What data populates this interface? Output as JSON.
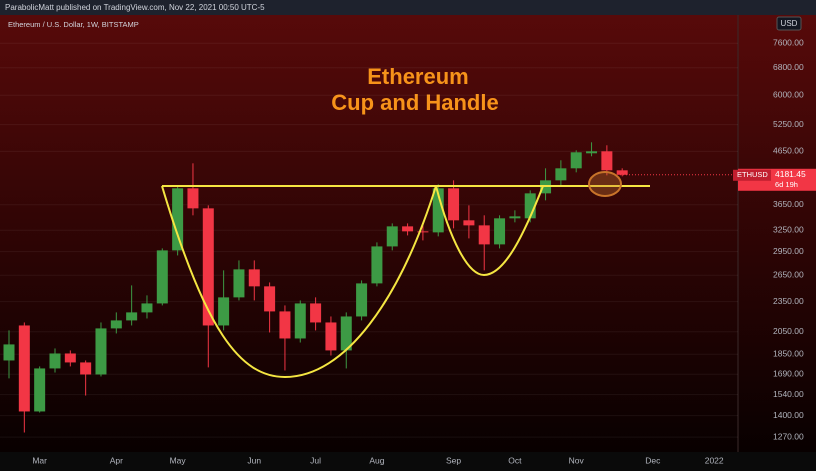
{
  "header": {
    "publisher": "ParabolicMatt published on TradingView.com, Nov 22, 2021 00:50 UTC-5",
    "symbol_description": "Ethereum / U.S. Dollar, 1W, BITSTAMP"
  },
  "chart_data": {
    "type": "candlestick",
    "annotations": [
      "Ethereum",
      "Cup and Handle"
    ],
    "categories": [
      null,
      null,
      "Mar",
      null,
      null,
      null,
      null,
      "Apr",
      null,
      null,
      null,
      "May",
      null,
      null,
      null,
      null,
      "Jun",
      null,
      null,
      null,
      "Jul",
      null,
      null,
      null,
      "Aug",
      null,
      null,
      null,
      null,
      "Sep",
      null,
      null,
      null,
      "Oct",
      null,
      null,
      null,
      "Nov",
      null,
      null,
      null,
      null,
      "Dec",
      null,
      null,
      null,
      "2022"
    ],
    "open": [
      1799,
      2109,
      1427,
      1735,
      1857,
      1783,
      1688,
      2081,
      2158,
      2238,
      2331,
      2966,
      3932,
      3590,
      2109,
      2396,
      2721,
      2519,
      2248,
      1988,
      2331,
      2138,
      1883,
      2197,
      2553,
      3020,
      3308,
      3234,
      3219,
      3932,
      3400,
      3323,
      3048,
      3431,
      3431,
      3843,
      4077,
      4306,
      4610,
      4652,
      4267,
      null,
      null,
      null,
      null,
      null,
      null
    ],
    "high": [
      2062,
      2138,
      1751,
      1900,
      1883,
      1799,
      2138,
      2238,
      2530,
      2418,
      2993,
      3985,
      4405,
      3639,
      2709,
      2834,
      2834,
      2564,
      2310,
      2363,
      2396,
      2197,
      2238,
      2588,
      3076,
      3353,
      3353,
      3323,
      4004,
      4077,
      3639,
      3478,
      3478,
      3558,
      3896,
      4306,
      4466,
      4673,
      4846,
      4781,
      4306,
      null,
      null,
      null,
      null,
      null,
      null
    ],
    "low": [
      1658,
      1297,
      1420,
      1703,
      1751,
      1534,
      1673,
      2034,
      2109,
      2177,
      2310,
      2899,
      3478,
      1743,
      2062,
      2363,
      2363,
      2043,
      1719,
      1952,
      2062,
      1840,
      1735,
      2158,
      2519,
      2966,
      3175,
      3104,
      3161,
      3278,
      3132,
      2709,
      2993,
      3369,
      3369,
      3723,
      3985,
      4228,
      4548,
      4171,
      4152,
      null,
      null,
      null,
      null,
      null,
      null
    ],
    "close": [
      1935,
      1427,
      1735,
      1857,
      1783,
      1688,
      2081,
      2158,
      2238,
      2331,
      2966,
      3932,
      3590,
      2109,
      2396,
      2721,
      2519,
      2248,
      1988,
      2331,
      2138,
      1883,
      2197,
      2553,
      3020,
      3308,
      3234,
      3219,
      3932,
      3400,
      3323,
      3048,
      3431,
      3462,
      3843,
      4077,
      4306,
      4631,
      4652,
      4267,
      4181.45,
      null,
      null,
      null,
      null,
      null,
      null
    ],
    "up_color": "#3d9a45",
    "down_color": "#f23645",
    "log_scale": true,
    "grid": true,
    "ylim": [
      1187,
      8640
    ],
    "yticks": [
      {
        "value": 1270,
        "label": "1270.00"
      },
      {
        "value": 1400,
        "label": "1400.00"
      },
      {
        "value": 1540,
        "label": "1540.00"
      },
      {
        "value": 1690,
        "label": "1690.00"
      },
      {
        "value": 1850,
        "label": "1850.00"
      },
      {
        "value": 2050,
        "label": "2050.00"
      },
      {
        "value": 2350,
        "label": "2350.00"
      },
      {
        "value": 2650,
        "label": "2650.00"
      },
      {
        "value": 2950,
        "label": "2950.00"
      },
      {
        "value": 3250,
        "label": "3250.00"
      },
      {
        "value": 3650,
        "label": "3650.00"
      },
      {
        "value": 4650,
        "label": "4650.00"
      },
      {
        "value": 5250,
        "label": "5250.00"
      },
      {
        "value": 6000,
        "label": "6000.00"
      },
      {
        "value": 6800,
        "label": "6800.00"
      },
      {
        "value": 7600,
        "label": "7600.00"
      }
    ],
    "currency": "USD",
    "last_price": {
      "symbol": "ETHUSD",
      "value": 4181.45,
      "countdown": "6d 19h"
    }
  }
}
